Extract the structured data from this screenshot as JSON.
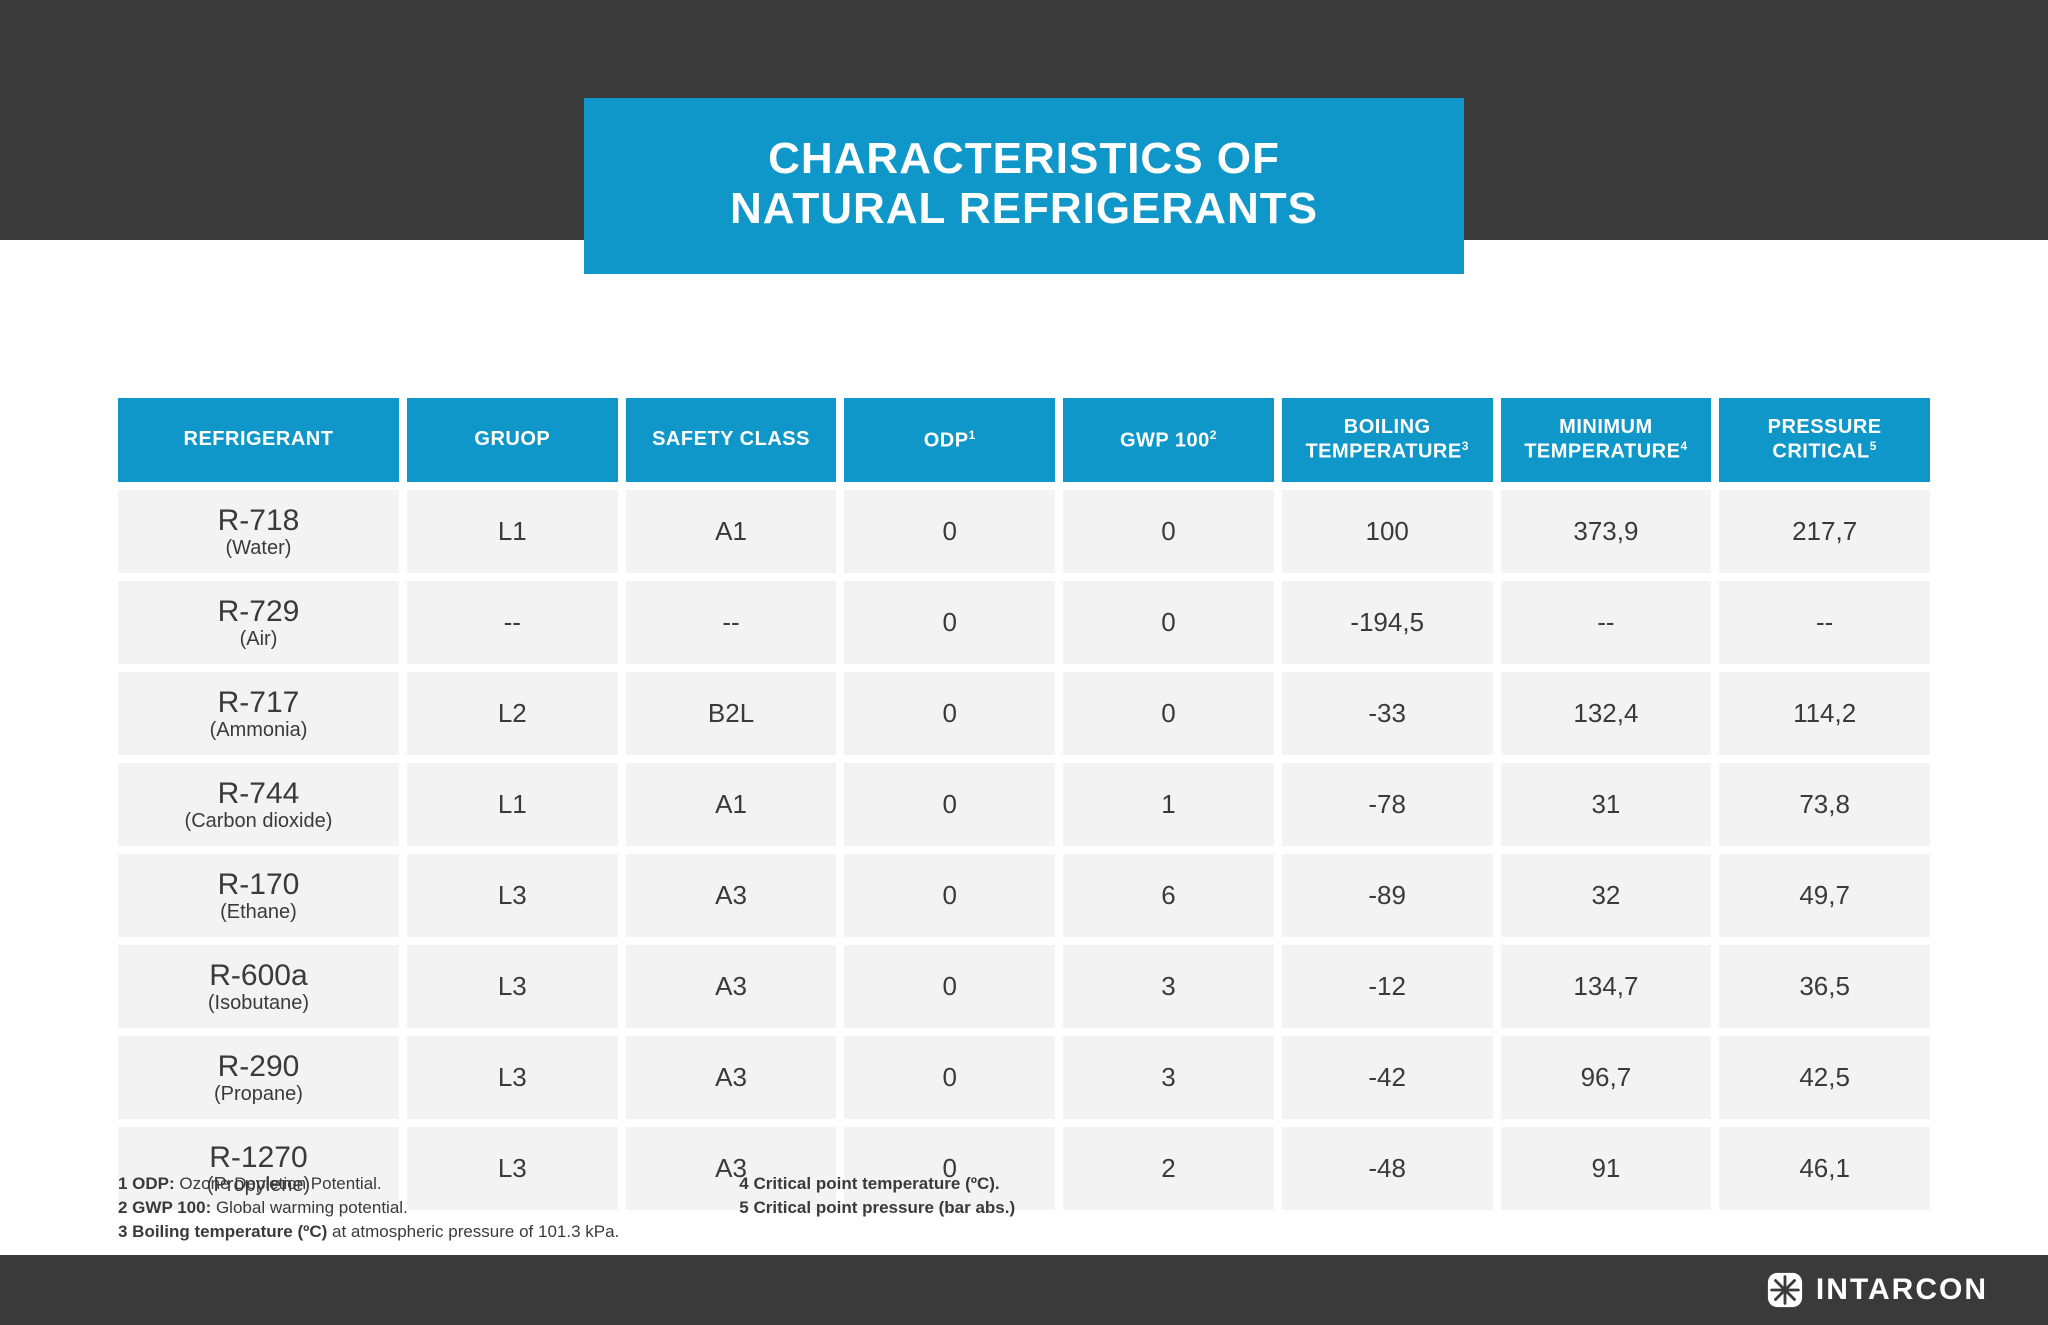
{
  "colors": {
    "band": "#3a3a3a",
    "accent": "#0e97c8",
    "cell_bg": "#f3f3f3",
    "text": "#3a3a3a",
    "white": "#ffffff"
  },
  "title": {
    "line1": "CHARACTERISTICS OF",
    "line2": "NATURAL REFRIGERANTS"
  },
  "table": {
    "columns": [
      {
        "label": "REFRIGERANT",
        "sup": ""
      },
      {
        "label": "GRUOP",
        "sup": ""
      },
      {
        "label": "SAFETY CLASS",
        "sup": ""
      },
      {
        "label": "ODP",
        "sup": "1"
      },
      {
        "label": "GWP 100",
        "sup": "2"
      },
      {
        "label": "BOILING TEMPERATURE",
        "sup": "3"
      },
      {
        "label": "MINIMUM TEMPERATURE",
        "sup": "4"
      },
      {
        "label": "PRESSURE CRITICAL",
        "sup": "5"
      }
    ],
    "rows": [
      {
        "code": "R-718",
        "name": "(Water)",
        "cells": [
          "L1",
          "A1",
          "0",
          "0",
          "100",
          "373,9",
          "217,7"
        ]
      },
      {
        "code": "R-729",
        "name": "(Air)",
        "cells": [
          "--",
          "--",
          "0",
          "0",
          "-194,5",
          "--",
          "--"
        ]
      },
      {
        "code": "R-717",
        "name": "(Ammonia)",
        "cells": [
          "L2",
          "B2L",
          "0",
          "0",
          "-33",
          "132,4",
          "114,2"
        ]
      },
      {
        "code": "R-744",
        "name": "(Carbon dioxide)",
        "cells": [
          "L1",
          "A1",
          "0",
          "1",
          "-78",
          "31",
          "73,8"
        ]
      },
      {
        "code": "R-170",
        "name": "(Ethane)",
        "cells": [
          "L3",
          "A3",
          "0",
          "6",
          "-89",
          "32",
          "49,7"
        ]
      },
      {
        "code": "R-600a",
        "name": "(Isobutane)",
        "cells": [
          "L3",
          "A3",
          "0",
          "3",
          "-12",
          "134,7",
          "36,5"
        ]
      },
      {
        "code": "R-290",
        "name": "(Propane)",
        "cells": [
          "L3",
          "A3",
          "0",
          "3",
          "-42",
          "96,7",
          "42,5"
        ]
      },
      {
        "code": "R-1270",
        "name": "(Propylene)",
        "cells": [
          "L3",
          "A3",
          "0",
          "2",
          "-48",
          "91",
          "46,1"
        ]
      }
    ]
  },
  "footnotes": {
    "col1": [
      {
        "bold": "1 ODP:",
        "rest": " Ozone Depletion Potential."
      },
      {
        "bold": "2 GWP 100:",
        "rest": " Global warming potential."
      },
      {
        "bold": "3 Boiling temperature (ºC)",
        "rest": " at atmospheric pressure of 101.3 kPa."
      }
    ],
    "col2": [
      {
        "bold": "4 Critical point temperature (ºC).",
        "rest": ""
      },
      {
        "bold": "5 Critical point pressure (bar abs.)",
        "rest": ""
      }
    ]
  },
  "brand": "INTARCON"
}
